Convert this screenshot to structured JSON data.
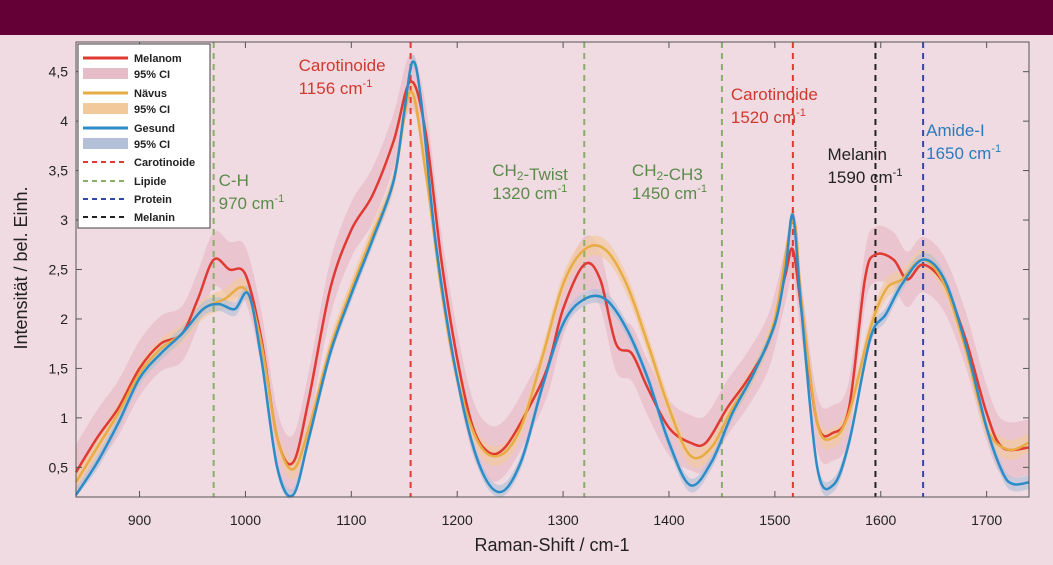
{
  "header": {
    "color": "#650036"
  },
  "chart_data": {
    "type": "line",
    "xlabel": "Raman-Shift / cm-1",
    "ylabel": "Intensität / bel. Einh.",
    "xlim": [
      840,
      1740
    ],
    "ylim": [
      0.2,
      4.8
    ],
    "xticks": [
      900,
      1000,
      1100,
      1200,
      1300,
      1400,
      1500,
      1600,
      1700
    ],
    "yticks": [
      {
        "v": 0.5,
        "label": "0,5"
      },
      {
        "v": 1,
        "label": "1"
      },
      {
        "v": 1.5,
        "label": "1,5"
      },
      {
        "v": 2,
        "label": "2"
      },
      {
        "v": 2.5,
        "label": "2,5"
      },
      {
        "v": 3,
        "label": "3"
      },
      {
        "v": 3.5,
        "label": "3,5"
      },
      {
        "v": 4,
        "label": "4"
      },
      {
        "v": 4.5,
        "label": "4,5"
      }
    ],
    "grid": false,
    "legend_position": "top-left",
    "series": [
      {
        "name": "Melanom",
        "ci_name": "95% CI",
        "color": "#e03a32",
        "ci_color": "#e7bcc9",
        "points": [
          [
            840,
            0.45
          ],
          [
            860,
            0.8
          ],
          [
            880,
            1.1
          ],
          [
            900,
            1.5
          ],
          [
            920,
            1.75
          ],
          [
            940,
            1.85
          ],
          [
            955,
            2.2
          ],
          [
            970,
            2.6
          ],
          [
            985,
            2.5
          ],
          [
            1000,
            2.45
          ],
          [
            1015,
            1.8
          ],
          [
            1030,
            0.8
          ],
          [
            1045,
            0.55
          ],
          [
            1060,
            1.2
          ],
          [
            1080,
            2.3
          ],
          [
            1100,
            2.9
          ],
          [
            1120,
            3.25
          ],
          [
            1140,
            3.8
          ],
          [
            1156,
            4.4
          ],
          [
            1170,
            3.9
          ],
          [
            1185,
            2.6
          ],
          [
            1200,
            1.6
          ],
          [
            1215,
            0.9
          ],
          [
            1230,
            0.65
          ],
          [
            1245,
            0.7
          ],
          [
            1265,
            1.05
          ],
          [
            1285,
            1.5
          ],
          [
            1300,
            2.1
          ],
          [
            1320,
            2.55
          ],
          [
            1335,
            2.4
          ],
          [
            1350,
            1.75
          ],
          [
            1365,
            1.65
          ],
          [
            1380,
            1.3
          ],
          [
            1400,
            0.9
          ],
          [
            1420,
            0.75
          ],
          [
            1435,
            0.75
          ],
          [
            1455,
            1.1
          ],
          [
            1475,
            1.4
          ],
          [
            1495,
            1.8
          ],
          [
            1510,
            2.45
          ],
          [
            1517,
            2.7
          ],
          [
            1525,
            2.1
          ],
          [
            1540,
            0.95
          ],
          [
            1555,
            0.85
          ],
          [
            1570,
            1.1
          ],
          [
            1585,
            2.4
          ],
          [
            1595,
            2.65
          ],
          [
            1612,
            2.6
          ],
          [
            1625,
            2.4
          ],
          [
            1640,
            2.55
          ],
          [
            1660,
            2.35
          ],
          [
            1680,
            1.8
          ],
          [
            1700,
            1.05
          ],
          [
            1715,
            0.7
          ],
          [
            1740,
            0.7
          ]
        ]
      },
      {
        "name": "Nävus",
        "ci_name": "95% CI",
        "color": "#e8ac45",
        "ci_color": "#f2c99a",
        "points": [
          [
            840,
            0.35
          ],
          [
            860,
            0.7
          ],
          [
            880,
            1.05
          ],
          [
            900,
            1.45
          ],
          [
            920,
            1.7
          ],
          [
            940,
            1.85
          ],
          [
            960,
            2.1
          ],
          [
            980,
            2.2
          ],
          [
            1000,
            2.3
          ],
          [
            1015,
            1.75
          ],
          [
            1030,
            0.8
          ],
          [
            1045,
            0.48
          ],
          [
            1060,
            0.9
          ],
          [
            1080,
            1.7
          ],
          [
            1100,
            2.3
          ],
          [
            1120,
            2.85
          ],
          [
            1140,
            3.4
          ],
          [
            1156,
            4.3
          ],
          [
            1170,
            3.5
          ],
          [
            1185,
            2.3
          ],
          [
            1200,
            1.4
          ],
          [
            1220,
            0.75
          ],
          [
            1240,
            0.62
          ],
          [
            1260,
            0.9
          ],
          [
            1280,
            1.6
          ],
          [
            1300,
            2.35
          ],
          [
            1320,
            2.7
          ],
          [
            1340,
            2.7
          ],
          [
            1360,
            2.35
          ],
          [
            1380,
            1.75
          ],
          [
            1400,
            1.1
          ],
          [
            1420,
            0.62
          ],
          [
            1440,
            0.7
          ],
          [
            1460,
            1.1
          ],
          [
            1480,
            1.45
          ],
          [
            1500,
            2.0
          ],
          [
            1517,
            3.0
          ],
          [
            1525,
            2.2
          ],
          [
            1540,
            0.95
          ],
          [
            1555,
            0.8
          ],
          [
            1570,
            1.05
          ],
          [
            1590,
            1.9
          ],
          [
            1605,
            2.3
          ],
          [
            1620,
            2.4
          ],
          [
            1640,
            2.6
          ],
          [
            1660,
            2.35
          ],
          [
            1680,
            1.7
          ],
          [
            1700,
            0.9
          ],
          [
            1720,
            0.68
          ],
          [
            1740,
            0.75
          ]
        ]
      },
      {
        "name": "Gesund",
        "ci_name": "95% CI",
        "color": "#2b8cc8",
        "ci_color": "#b3c0d8",
        "points": [
          [
            840,
            0.22
          ],
          [
            860,
            0.55
          ],
          [
            880,
            0.95
          ],
          [
            900,
            1.4
          ],
          [
            920,
            1.65
          ],
          [
            940,
            1.85
          ],
          [
            960,
            2.1
          ],
          [
            975,
            2.15
          ],
          [
            990,
            2.1
          ],
          [
            1003,
            2.25
          ],
          [
            1015,
            1.6
          ],
          [
            1030,
            0.5
          ],
          [
            1045,
            0.22
          ],
          [
            1060,
            0.8
          ],
          [
            1080,
            1.65
          ],
          [
            1100,
            2.25
          ],
          [
            1120,
            2.8
          ],
          [
            1140,
            3.4
          ],
          [
            1150,
            4.1
          ],
          [
            1158,
            4.6
          ],
          [
            1166,
            4.2
          ],
          [
            1180,
            2.75
          ],
          [
            1200,
            1.4
          ],
          [
            1220,
            0.55
          ],
          [
            1240,
            0.25
          ],
          [
            1260,
            0.55
          ],
          [
            1280,
            1.3
          ],
          [
            1300,
            1.95
          ],
          [
            1320,
            2.2
          ],
          [
            1340,
            2.2
          ],
          [
            1360,
            1.9
          ],
          [
            1380,
            1.4
          ],
          [
            1400,
            0.75
          ],
          [
            1420,
            0.32
          ],
          [
            1440,
            0.55
          ],
          [
            1460,
            1.05
          ],
          [
            1480,
            1.45
          ],
          [
            1500,
            1.95
          ],
          [
            1510,
            2.5
          ],
          [
            1517,
            3.05
          ],
          [
            1525,
            2.1
          ],
          [
            1540,
            0.5
          ],
          [
            1555,
            0.32
          ],
          [
            1570,
            0.75
          ],
          [
            1590,
            1.8
          ],
          [
            1605,
            2.05
          ],
          [
            1620,
            2.35
          ],
          [
            1640,
            2.6
          ],
          [
            1660,
            2.4
          ],
          [
            1680,
            1.75
          ],
          [
            1700,
            0.9
          ],
          [
            1715,
            0.45
          ],
          [
            1725,
            0.33
          ],
          [
            1740,
            0.35
          ]
        ]
      }
    ],
    "band_peaks": [
      {
        "name": "Carotinoide",
        "color": "#e03a32",
        "x": 1156,
        "label_lines": [
          "Carotinoide",
          "1156 cm-1"
        ],
        "label_color": "#d0392f"
      },
      {
        "name": "Carotinoide",
        "color": "#e03a32",
        "x": 1517,
        "label_lines": [
          "Carotinoide",
          "1520 cm-1"
        ],
        "label_color": "#d0392f"
      },
      {
        "name": "Lipide",
        "color": "#89ad6a",
        "x": 970,
        "label_lines": [
          "C-H",
          "970 cm-1"
        ],
        "label_color": "#5a8b4a"
      },
      {
        "name": "Lipide",
        "color": "#89ad6a",
        "x": 1320,
        "label_lines": [
          "CH2-Twist",
          "1320 cm-1"
        ],
        "label_color": "#5a8b4a"
      },
      {
        "name": "Lipide",
        "color": "#89ad6a",
        "x": 1450,
        "label_lines": [
          "CH2-CH3",
          "1450 cm-1"
        ],
        "label_color": "#5a8b4a"
      },
      {
        "name": "Melanin",
        "color": "#222222",
        "x": 1595,
        "label_lines": [
          "Melanin",
          "1590 cm-1"
        ],
        "label_color": "#222222"
      },
      {
        "name": "Protein",
        "color": "#3347a8",
        "x": 1640,
        "label_lines": [
          "Amide-I",
          "1650 cm-1"
        ],
        "label_color": "#2a7bbd"
      }
    ],
    "legend_labels": {
      "melanom": "Melanom",
      "ci1": "95% CI",
      "naevus": "Nävus",
      "ci2": "95% CI",
      "gesund": "Gesund",
      "ci3": "95% CI",
      "carotinoide": "Carotinoide",
      "lipide": "Lipide",
      "protein": "Protein",
      "melanin": "Melanin"
    }
  }
}
